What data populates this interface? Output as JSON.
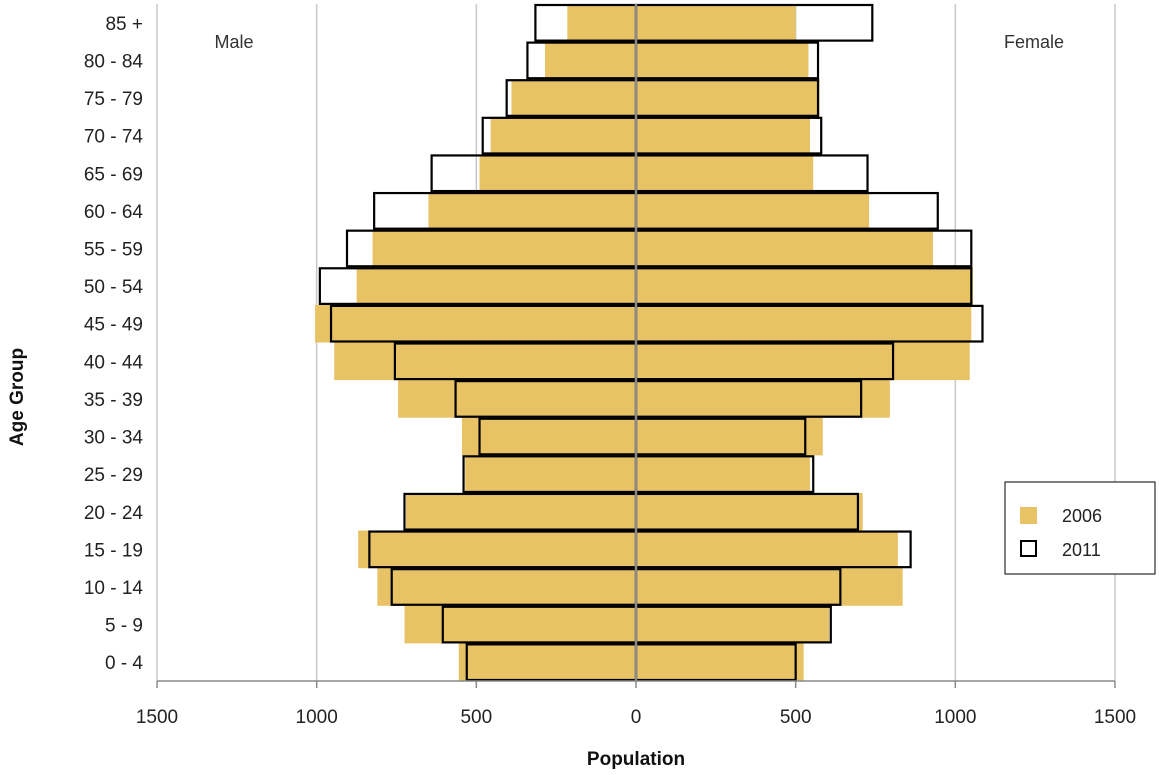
{
  "chart_data": {
    "type": "bar",
    "orientation": "horizontal-population-pyramid",
    "xlabel": "Population",
    "ylabel": "Age Group",
    "xlim": [
      -1500,
      1500
    ],
    "xticks": [
      -1500,
      -1000,
      -500,
      0,
      500,
      1000,
      1500
    ],
    "xtick_labels": [
      "1500",
      "1000",
      "500",
      "0",
      "500",
      "1000",
      "1500"
    ],
    "grid": "vertical",
    "legend_position": "right",
    "side_labels": {
      "left": "Male",
      "right": "Female"
    },
    "categories": [
      "0 - 4",
      "5 - 9",
      "10 - 14",
      "15 - 19",
      "20 - 24",
      "25 - 29",
      "30 - 34",
      "35 - 39",
      "40 - 44",
      "45 - 49",
      "50 - 54",
      "55 - 59",
      "60 - 64",
      "65 - 69",
      "70 - 74",
      "75 - 79",
      "80 - 84",
      "85 +"
    ],
    "series": [
      {
        "name": "2006",
        "style": "filled",
        "color": "#E8C366",
        "male": [
          555,
          725,
          810,
          870,
          720,
          535,
          545,
          745,
          945,
          1005,
          875,
          825,
          650,
          490,
          455,
          390,
          285,
          215
        ],
        "female": [
          525,
          605,
          835,
          820,
          710,
          545,
          585,
          795,
          1045,
          1050,
          1055,
          930,
          730,
          555,
          545,
          575,
          540,
          500
        ]
      },
      {
        "name": "2011",
        "style": "outline",
        "color": "#000000",
        "male": [
          530,
          605,
          765,
          835,
          725,
          540,
          490,
          565,
          755,
          955,
          990,
          905,
          820,
          640,
          480,
          405,
          340,
          315
        ],
        "female": [
          500,
          610,
          640,
          860,
          695,
          555,
          530,
          705,
          805,
          1085,
          1050,
          1050,
          945,
          725,
          580,
          570,
          570,
          740
        ]
      }
    ]
  }
}
